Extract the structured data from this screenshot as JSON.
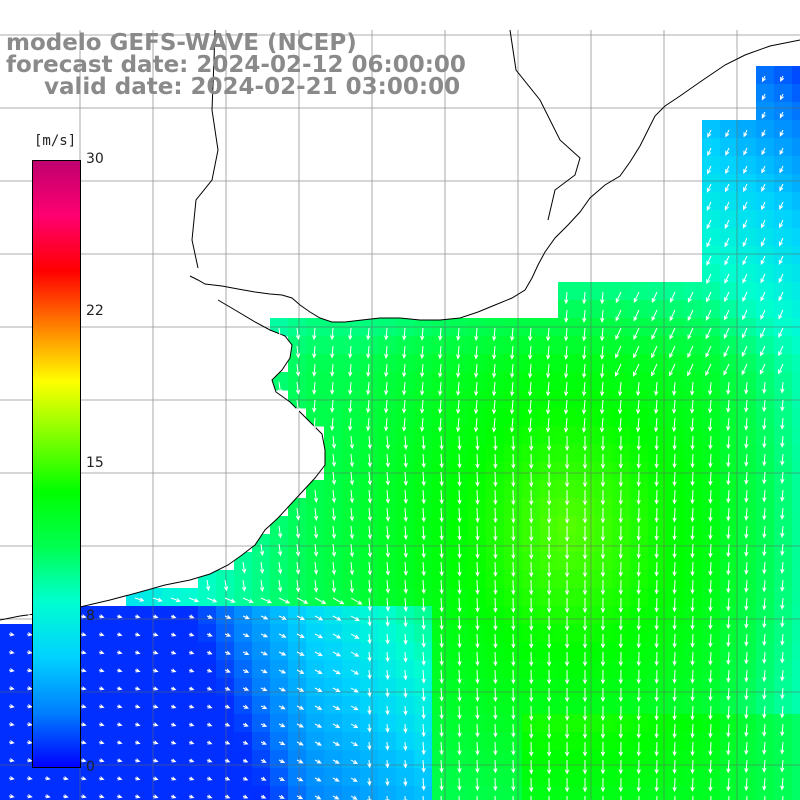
{
  "title": {
    "line1": "modelo GEFS-WAVE (NCEP)",
    "line2": "forecast date: 2024-02-12 06:00:00",
    "line3": "valid date: 2024-02-21 03:00:00"
  },
  "colorbar": {
    "unit": "[m/s]",
    "ticks": [
      "30",
      "22",
      "15",
      "8",
      "0"
    ],
    "min": 0,
    "max": 30,
    "colors": [
      "#0000ff",
      "#0080ff",
      "#00d2ff",
      "#00ffd0",
      "#00ff50",
      "#00ff00",
      "#80ff00",
      "#ffff00",
      "#ff8000",
      "#ff0000",
      "#ff0070",
      "#c0006f"
    ]
  },
  "map": {
    "grid": "on",
    "land_color": "#ffffff",
    "coast_color": "#000000",
    "arrow_color": "#ffffff"
  }
}
